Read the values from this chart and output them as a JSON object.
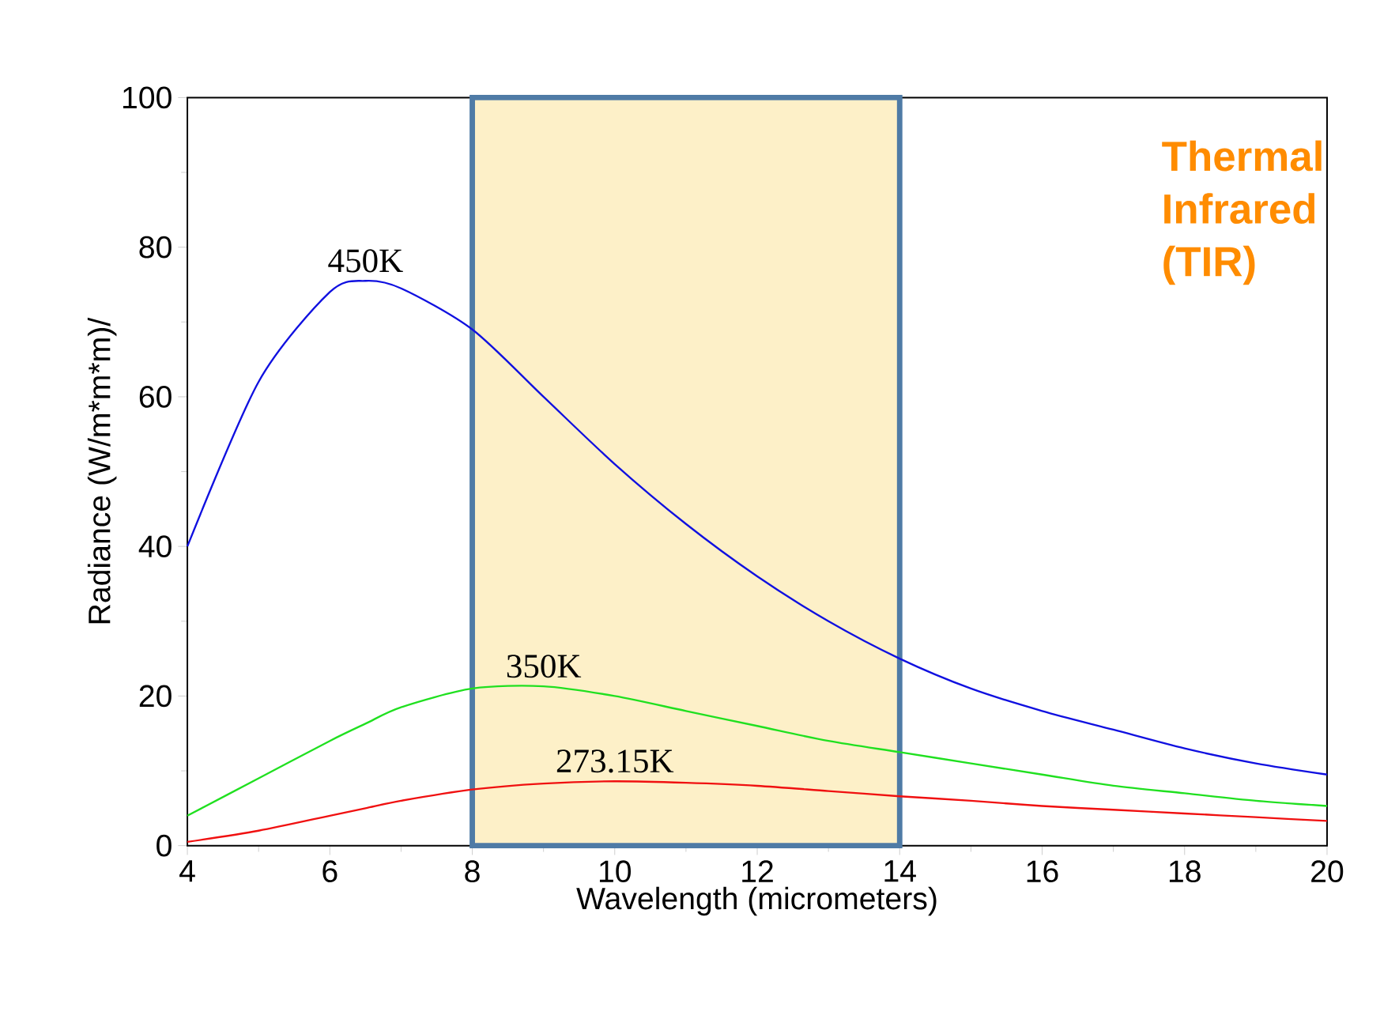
{
  "chart_data": {
    "type": "line",
    "ylabel": "Radiance (W/m*m*m)/",
    "xlabel": "Wavelength (micrometers)",
    "x": [
      4,
      5,
      6,
      6.5,
      7,
      8,
      9,
      10,
      11,
      12,
      13,
      14,
      15,
      16,
      17,
      18,
      19,
      20
    ],
    "series": [
      {
        "name": "450K",
        "color": "#1010e0",
        "values": [
          40,
          62,
          74,
          75.5,
          74.5,
          69,
          60,
          51,
          43,
          36,
          30,
          25,
          21,
          18,
          15.5,
          13,
          11,
          9.5
        ]
      },
      {
        "name": "350K",
        "color": "#20e020",
        "values": [
          4,
          9,
          14,
          16.3,
          18.5,
          21,
          21.3,
          20,
          18,
          16,
          14,
          12.5,
          11,
          9.5,
          8,
          7,
          6,
          5.3
        ]
      },
      {
        "name": "273.15K",
        "color": "#f01010",
        "values": [
          0.5,
          2,
          4,
          5,
          6,
          7.5,
          8.3,
          8.6,
          8.4,
          8,
          7.3,
          6.6,
          6,
          5.3,
          4.8,
          4.3,
          3.8,
          3.3
        ]
      }
    ],
    "xlim": [
      4,
      20
    ],
    "ylim": [
      0,
      100
    ],
    "xticks": [
      4,
      6,
      8,
      10,
      12,
      14,
      16,
      18,
      20
    ],
    "yticks": [
      0,
      20,
      40,
      60,
      80,
      100
    ],
    "bands": [
      {
        "axis": "x",
        "from": 8,
        "to": 14,
        "color": "#fdf0c8"
      }
    ],
    "annotations": [
      "Thermal Infrared (TIR)"
    ],
    "grid": false,
    "legend": false,
    "marker": "none",
    "line_style": "solid"
  }
}
